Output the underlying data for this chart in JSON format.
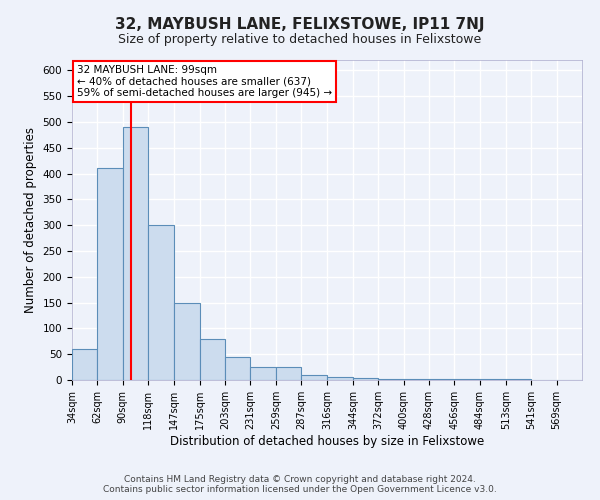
{
  "title": "32, MAYBUSH LANE, FELIXSTOWE, IP11 7NJ",
  "subtitle": "Size of property relative to detached houses in Felixstowe",
  "xlabel": "Distribution of detached houses by size in Felixstowe",
  "ylabel": "Number of detached properties",
  "footnote1": "Contains HM Land Registry data © Crown copyright and database right 2024.",
  "footnote2": "Contains public sector information licensed under the Open Government Licence v3.0.",
  "annotation_line1": "32 MAYBUSH LANE: 99sqm",
  "annotation_line2": "← 40% of detached houses are smaller (637)",
  "annotation_line3": "59% of semi-detached houses are larger (945) →",
  "bar_edges": [
    34,
    62,
    90,
    118,
    147,
    175,
    203,
    231,
    259,
    287,
    316,
    344,
    372,
    400,
    428,
    456,
    484,
    513,
    541,
    569,
    597
  ],
  "bar_heights": [
    60,
    410,
    490,
    300,
    150,
    80,
    45,
    25,
    25,
    10,
    5,
    3,
    2,
    2,
    1,
    1,
    1,
    1,
    0,
    0
  ],
  "bar_color": "#ccdcee",
  "bar_edgecolor": "#5b8db8",
  "red_line_x": 99,
  "ylim": [
    0,
    620
  ],
  "yticks": [
    0,
    50,
    100,
    150,
    200,
    250,
    300,
    350,
    400,
    450,
    500,
    550,
    600
  ],
  "bg_color": "#eef2fa",
  "grid_color": "#ffffff",
  "title_fontsize": 11,
  "subtitle_fontsize": 9.5
}
